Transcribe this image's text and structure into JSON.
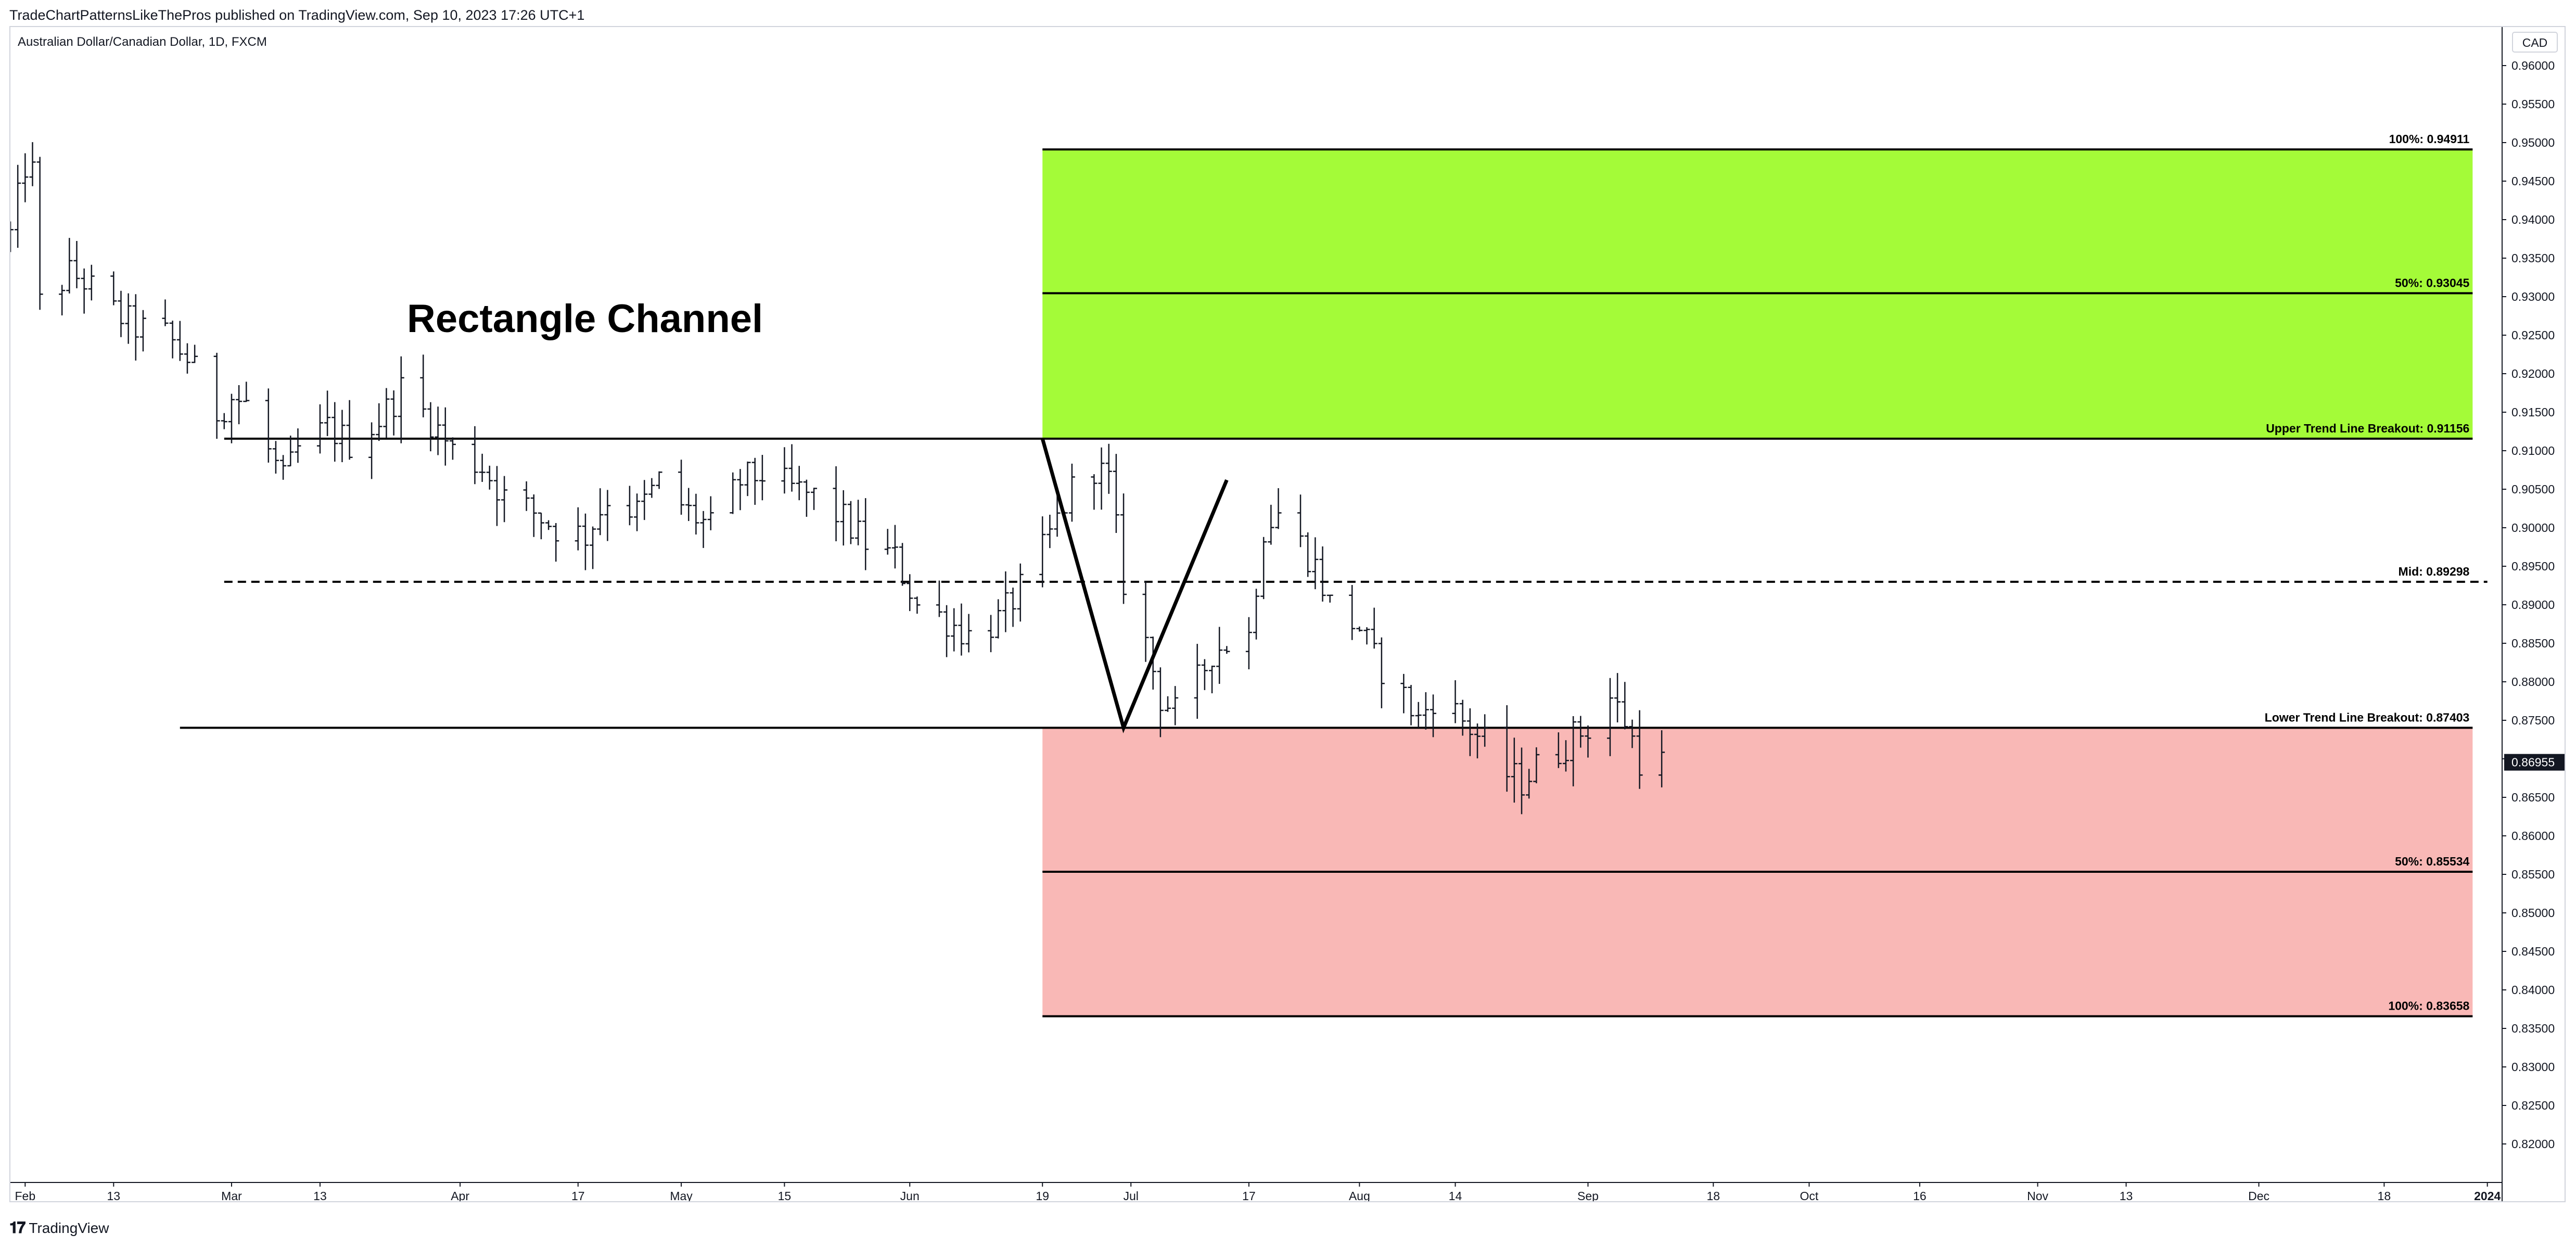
{
  "header": {
    "publish_info": "TradeChartPatternsLikeThePros published on TradingView.com, Sep 10, 2023 17:26 UTC+1"
  },
  "footer": {
    "brand": "TradingView",
    "logo": "tradingview-logo-icon"
  },
  "chart_data": {
    "type": "ohlc-bar",
    "symbol_title": "Australian Dollar/Canadian Dollar, 1D, FXCM",
    "currency": "CAD",
    "annotation_title": "Rectangle Channel",
    "last_price": "0.86955",
    "ylim": [
      0.815,
      0.965
    ],
    "y_ticks": [
      0.82,
      0.825,
      0.83,
      0.835,
      0.84,
      0.845,
      0.85,
      0.855,
      0.86,
      0.865,
      0.87,
      0.875,
      0.88,
      0.885,
      0.89,
      0.895,
      0.9,
      0.905,
      0.91,
      0.915,
      0.92,
      0.925,
      0.93,
      0.935,
      0.94,
      0.945,
      0.95,
      0.955,
      0.96
    ],
    "y_tick_labels": [
      "0.82000",
      "0.82500",
      "0.83000",
      "0.83500",
      "0.84000",
      "0.84500",
      "0.85000",
      "0.85500",
      "0.86000",
      "0.86500",
      "0.87000",
      "0.87500",
      "0.88000",
      "0.88500",
      "0.89000",
      "0.89500",
      "0.90000",
      "0.90500",
      "0.91000",
      "0.91500",
      "0.92000",
      "0.92500",
      "0.93000",
      "0.93500",
      "0.94000",
      "0.94500",
      "0.95000",
      "0.95500",
      "0.96000"
    ],
    "x_range": [
      "2023-01-30",
      "2024-01-03"
    ],
    "x_ticks": [
      {
        "date": "2023-02-01",
        "label": "Feb"
      },
      {
        "date": "2023-02-13",
        "label": "13"
      },
      {
        "date": "2023-03-01",
        "label": "Mar"
      },
      {
        "date": "2023-03-13",
        "label": "13"
      },
      {
        "date": "2023-04-01",
        "label": "Apr"
      },
      {
        "date": "2023-04-17",
        "label": "17"
      },
      {
        "date": "2023-05-01",
        "label": "May"
      },
      {
        "date": "2023-05-15",
        "label": "15"
      },
      {
        "date": "2023-06-01",
        "label": "Jun"
      },
      {
        "date": "2023-06-19",
        "label": "19"
      },
      {
        "date": "2023-07-01",
        "label": "Jul"
      },
      {
        "date": "2023-07-17",
        "label": "17"
      },
      {
        "date": "2023-08-01",
        "label": "Aug"
      },
      {
        "date": "2023-08-14",
        "label": "14"
      },
      {
        "date": "2023-09-01",
        "label": "Sep"
      },
      {
        "date": "2023-09-18",
        "label": "18"
      },
      {
        "date": "2023-10-01",
        "label": "Oct"
      },
      {
        "date": "2023-10-16",
        "label": "16"
      },
      {
        "date": "2023-11-01",
        "label": "Nov"
      },
      {
        "date": "2023-11-13",
        "label": "13"
      },
      {
        "date": "2023-12-01",
        "label": "Dec"
      },
      {
        "date": "2023-12-18",
        "label": "18"
      },
      {
        "date": "2024-01-01",
        "label": "2024"
      }
    ],
    "levels": [
      {
        "name": "target-up-100",
        "label": "100%: 0.94911",
        "value": 0.94911,
        "start": "2023-06-19",
        "end": "2023-12-30",
        "style": "solid"
      },
      {
        "name": "target-up-50",
        "label": "50%: 0.93045",
        "value": 0.93045,
        "start": "2023-06-19",
        "end": "2023-12-30",
        "style": "solid"
      },
      {
        "name": "upper-trend-line",
        "label": "Upper Trend Line Breakout: 0.91156",
        "value": 0.91156,
        "start": "2023-02-28",
        "end": "2023-12-30",
        "style": "solid"
      },
      {
        "name": "mid-line",
        "label": "Mid: 0.89298",
        "value": 0.89298,
        "start": "2023-02-28",
        "end": "2024-01-01",
        "style": "dashed"
      },
      {
        "name": "lower-trend-line",
        "label": "Lower Trend Line Breakout: 0.87403",
        "value": 0.87403,
        "start": "2023-02-22",
        "end": "2023-12-30",
        "style": "solid"
      },
      {
        "name": "target-down-50",
        "label": "50%: 0.85534",
        "value": 0.85534,
        "start": "2023-06-19",
        "end": "2023-12-30",
        "style": "solid"
      },
      {
        "name": "target-down-100",
        "label": "100%: 0.83658",
        "value": 0.83658,
        "start": "2023-06-19",
        "end": "2023-12-30",
        "style": "solid"
      }
    ],
    "zones": [
      {
        "name": "upside-target-zone",
        "from": 0.91156,
        "to": 0.94911,
        "start": "2023-06-19",
        "end": "2023-12-30",
        "color": "#a4fb38"
      },
      {
        "name": "downside-target-zone",
        "from": 0.83658,
        "to": 0.87403,
        "start": "2023-06-19",
        "end": "2023-12-30",
        "color": "#f9b8b6"
      }
    ],
    "pattern_line": [
      {
        "date": "2023-06-19",
        "value": 0.91156
      },
      {
        "date": "2023-06-30",
        "value": 0.87403
      },
      {
        "date": "2023-07-14",
        "value": 0.9062
      }
    ],
    "price_path": [
      [
        "2023-01-30",
        0.938
      ],
      [
        "2023-02-01",
        0.947
      ],
      [
        "2023-02-02",
        0.946
      ],
      [
        "2023-02-03",
        0.929
      ],
      [
        "2023-02-07",
        0.933
      ],
      [
        "2023-02-09",
        0.932
      ],
      [
        "2023-02-13",
        0.928
      ],
      [
        "2023-02-16",
        0.926
      ],
      [
        "2023-02-20",
        0.925
      ],
      [
        "2023-02-23",
        0.922
      ],
      [
        "2023-02-27",
        0.915
      ],
      [
        "2023-03-01",
        0.917
      ],
      [
        "2023-03-03",
        0.916
      ],
      [
        "2023-03-08",
        0.906
      ],
      [
        "2023-03-10",
        0.91
      ],
      [
        "2023-03-14",
        0.913
      ],
      [
        "2023-03-17",
        0.911
      ],
      [
        "2023-03-21",
        0.914
      ],
      [
        "2023-03-24",
        0.918
      ],
      [
        "2023-03-28",
        0.914
      ],
      [
        "2023-03-31",
        0.91
      ],
      [
        "2023-04-04",
        0.908
      ],
      [
        "2023-04-07",
        0.904
      ],
      [
        "2023-04-11",
        0.902
      ],
      [
        "2023-04-14",
        0.9
      ],
      [
        "2023-04-18",
        0.899
      ],
      [
        "2023-04-21",
        0.904
      ],
      [
        "2023-04-25",
        0.902
      ],
      [
        "2023-04-28",
        0.906
      ],
      [
        "2023-05-02",
        0.902
      ],
      [
        "2023-05-05",
        0.9
      ],
      [
        "2023-05-09",
        0.906
      ],
      [
        "2023-05-12",
        0.907
      ],
      [
        "2023-05-16",
        0.905
      ],
      [
        "2023-05-19",
        0.904
      ],
      [
        "2023-05-23",
        0.901
      ],
      [
        "2023-05-26",
        0.898
      ],
      [
        "2023-05-30",
        0.896
      ],
      [
        "2023-06-02",
        0.89
      ],
      [
        "2023-06-06",
        0.888
      ],
      [
        "2023-06-09",
        0.886
      ],
      [
        "2023-06-13",
        0.888
      ],
      [
        "2023-06-16",
        0.892
      ],
      [
        "2023-06-19",
        0.897
      ],
      [
        "2023-06-21",
        0.901
      ],
      [
        "2023-06-23",
        0.905
      ],
      [
        "2023-06-26",
        0.908
      ],
      [
        "2023-06-28",
        0.906
      ],
      [
        "2023-06-30",
        0.893
      ],
      [
        "2023-07-03",
        0.885
      ],
      [
        "2023-07-05",
        0.878
      ],
      [
        "2023-07-07",
        0.876
      ],
      [
        "2023-07-10",
        0.88
      ],
      [
        "2023-07-12",
        0.884
      ],
      [
        "2023-07-14",
        0.885
      ],
      [
        "2023-07-17",
        0.886
      ],
      [
        "2023-07-19",
        0.9
      ],
      [
        "2023-07-21",
        0.902
      ],
      [
        "2023-07-24",
        0.898
      ],
      [
        "2023-07-26",
        0.895
      ],
      [
        "2023-07-28",
        0.89
      ],
      [
        "2023-08-01",
        0.887
      ],
      [
        "2023-08-03",
        0.883
      ],
      [
        "2023-08-07",
        0.878
      ],
      [
        "2023-08-09",
        0.875
      ],
      [
        "2023-08-11",
        0.878
      ],
      [
        "2023-08-14",
        0.876
      ],
      [
        "2023-08-16",
        0.874
      ],
      [
        "2023-08-18",
        0.872
      ],
      [
        "2023-08-21",
        0.868
      ],
      [
        "2023-08-23",
        0.867
      ],
      [
        "2023-08-25",
        0.869
      ],
      [
        "2023-08-28",
        0.871
      ],
      [
        "2023-08-30",
        0.873
      ],
      [
        "2023-09-01",
        0.874
      ],
      [
        "2023-09-04",
        0.878
      ],
      [
        "2023-09-06",
        0.875
      ],
      [
        "2023-09-08",
        0.87
      ],
      [
        "2023-09-11",
        0.8695
      ]
    ]
  }
}
